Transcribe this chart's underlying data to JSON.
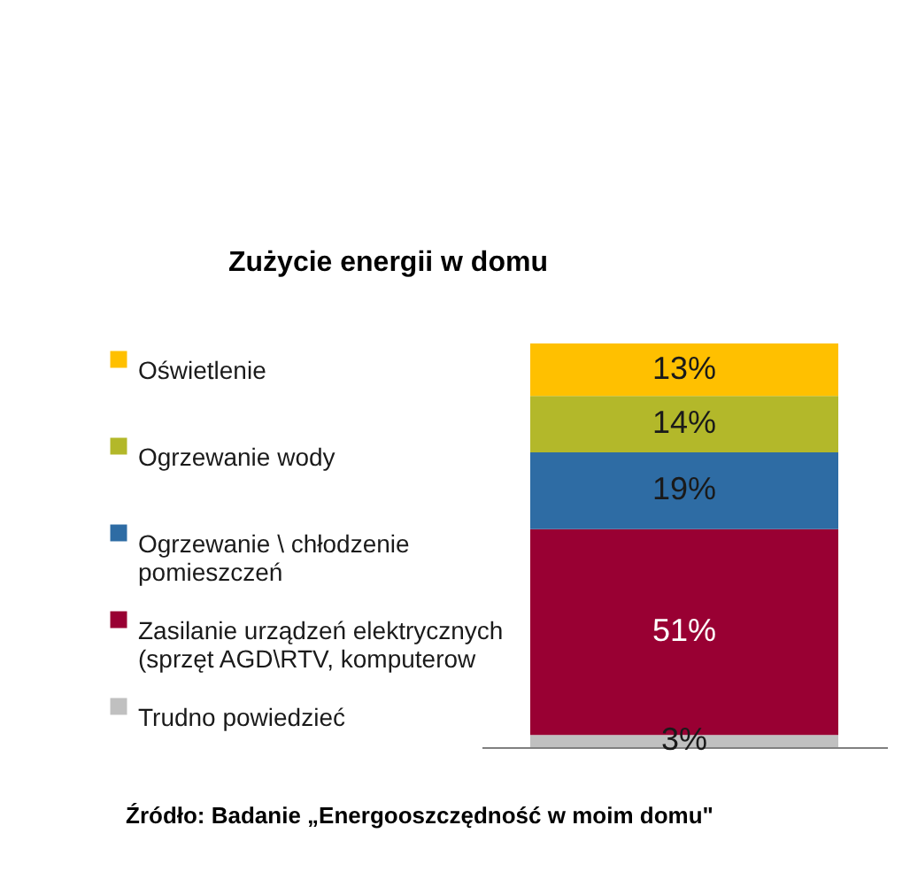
{
  "chart_data": {
    "type": "bar",
    "title": "Zużycie energii w domu",
    "categories": [
      null
    ],
    "stacked": true,
    "ylim": [
      0,
      100
    ],
    "series": [
      {
        "name": "Trudno powiedzieć",
        "color": "#c0c0c0",
        "values": [
          3
        ],
        "value_labels": [
          "3%"
        ]
      },
      {
        "name": "Zasilanie urządzeń elektrycznych (sprzęt AGD\\RTV, komputerow",
        "color": "#990033",
        "values": [
          51
        ],
        "value_labels": [
          "51%"
        ]
      },
      {
        "name": "Ogrzewanie \\ chłodzenie pomieszczeń",
        "color": "#2e6ca4",
        "values": [
          19
        ],
        "value_labels": [
          "19%"
        ]
      },
      {
        "name": "Ogrzewanie wody",
        "color": "#b3b82a",
        "values": [
          14
        ],
        "value_labels": [
          "14%"
        ]
      },
      {
        "name": "Oświetlenie",
        "color": "#ffc000",
        "values": [
          13
        ],
        "value_labels": [
          "13%"
        ]
      }
    ],
    "legend": "left",
    "annotations": [
      "Źródło: Badanie „Energooszczędność w moim domu\""
    ]
  }
}
